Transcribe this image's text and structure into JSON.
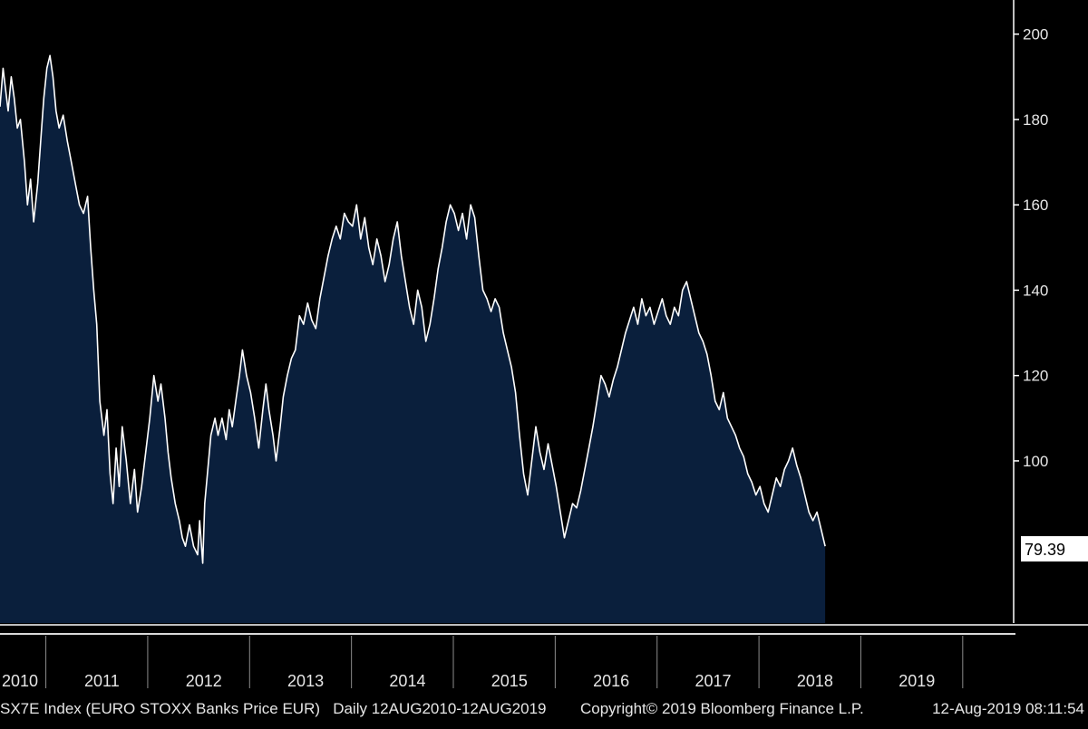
{
  "chart_data": {
    "type": "area",
    "footer": {
      "ticker": "SX7E Index (EURO STOXX Banks Price EUR)",
      "period": "Daily 12AUG2010-12AUG2019",
      "copyright": "Copyright© 2019 Bloomberg Finance L.P.",
      "timestamp": "12-Aug-2019 08:11:54"
    },
    "last_value": 79.39,
    "last_value_label": "79.39",
    "ylim": [
      62,
      208
    ],
    "xlim": [
      2010.0,
      2019.95
    ],
    "y_ticks": [
      {
        "value": 100,
        "label": "100"
      },
      {
        "value": 120,
        "label": "120"
      },
      {
        "value": 140,
        "label": "140"
      },
      {
        "value": 160,
        "label": "160"
      },
      {
        "value": 180,
        "label": "180"
      },
      {
        "value": 200,
        "label": "200"
      }
    ],
    "x_ticks": [
      {
        "value": 2010.1,
        "label": "2010"
      },
      {
        "value": 2011.0,
        "label": "2011"
      },
      {
        "value": 2012.0,
        "label": "2012"
      },
      {
        "value": 2013.0,
        "label": "2013"
      },
      {
        "value": 2014.0,
        "label": "2014"
      },
      {
        "value": 2015.0,
        "label": "2015"
      },
      {
        "value": 2016.0,
        "label": "2016"
      },
      {
        "value": 2017.0,
        "label": "2017"
      },
      {
        "value": 2018.0,
        "label": "2018"
      },
      {
        "value": 2019.0,
        "label": "2019"
      }
    ],
    "year_dividers": [
      2010.45,
      2011.45,
      2012.45,
      2013.45,
      2014.45,
      2015.45,
      2016.45,
      2017.45,
      2018.45,
      2019.45
    ],
    "colors": {
      "background": "#000000",
      "fill": "#0a1f3c",
      "line": "#ffffff",
      "axis": "#ffffff"
    },
    "series": [
      {
        "values": [
          [
            2010.0,
            183
          ],
          [
            2010.03,
            192
          ],
          [
            2010.05,
            188
          ],
          [
            2010.08,
            182
          ],
          [
            2010.11,
            190
          ],
          [
            2010.14,
            185
          ],
          [
            2010.17,
            178
          ],
          [
            2010.2,
            180
          ],
          [
            2010.24,
            170
          ],
          [
            2010.27,
            160
          ],
          [
            2010.3,
            166
          ],
          [
            2010.33,
            156
          ],
          [
            2010.37,
            165
          ],
          [
            2010.4,
            175
          ],
          [
            2010.43,
            185
          ],
          [
            2010.46,
            192
          ],
          [
            2010.49,
            195
          ],
          [
            2010.52,
            190
          ],
          [
            2010.55,
            182
          ],
          [
            2010.58,
            178
          ],
          [
            2010.62,
            181
          ],
          [
            2010.66,
            175
          ],
          [
            2010.7,
            170
          ],
          [
            2010.74,
            165
          ],
          [
            2010.78,
            160
          ],
          [
            2010.82,
            158
          ],
          [
            2010.86,
            162
          ],
          [
            2010.89,
            150
          ],
          [
            2010.92,
            140
          ],
          [
            2010.95,
            132
          ],
          [
            2010.98,
            114
          ],
          [
            2011.02,
            106
          ],
          [
            2011.05,
            112
          ],
          [
            2011.08,
            97
          ],
          [
            2011.11,
            90
          ],
          [
            2011.14,
            103
          ],
          [
            2011.17,
            94
          ],
          [
            2011.2,
            108
          ],
          [
            2011.24,
            100
          ],
          [
            2011.28,
            90
          ],
          [
            2011.32,
            98
          ],
          [
            2011.35,
            88
          ],
          [
            2011.39,
            94
          ],
          [
            2011.43,
            102
          ],
          [
            2011.47,
            110
          ],
          [
            2011.51,
            120
          ],
          [
            2011.55,
            114
          ],
          [
            2011.58,
            118
          ],
          [
            2011.62,
            110
          ],
          [
            2011.65,
            102
          ],
          [
            2011.68,
            96
          ],
          [
            2011.72,
            90
          ],
          [
            2011.76,
            86
          ],
          [
            2011.79,
            82
          ],
          [
            2011.82,
            80
          ],
          [
            2011.86,
            85
          ],
          [
            2011.9,
            80
          ],
          [
            2011.94,
            78
          ],
          [
            2011.96,
            86
          ],
          [
            2011.99,
            76
          ],
          [
            2012.01,
            90
          ],
          [
            2012.04,
            98
          ],
          [
            2012.07,
            106
          ],
          [
            2012.11,
            110
          ],
          [
            2012.14,
            106
          ],
          [
            2012.18,
            110
          ],
          [
            2012.22,
            105
          ],
          [
            2012.25,
            112
          ],
          [
            2012.28,
            108
          ],
          [
            2012.32,
            115
          ],
          [
            2012.35,
            120
          ],
          [
            2012.38,
            126
          ],
          [
            2012.42,
            120
          ],
          [
            2012.46,
            116
          ],
          [
            2012.5,
            110
          ],
          [
            2012.54,
            103
          ],
          [
            2012.58,
            112
          ],
          [
            2012.61,
            118
          ],
          [
            2012.64,
            112
          ],
          [
            2012.68,
            106
          ],
          [
            2012.71,
            100
          ],
          [
            2012.75,
            108
          ],
          [
            2012.78,
            115
          ],
          [
            2012.82,
            120
          ],
          [
            2012.86,
            124
          ],
          [
            2012.9,
            126
          ],
          [
            2012.94,
            134
          ],
          [
            2012.98,
            132
          ],
          [
            2013.02,
            137
          ],
          [
            2013.06,
            133
          ],
          [
            2013.1,
            131
          ],
          [
            2013.14,
            138
          ],
          [
            2013.18,
            143
          ],
          [
            2013.22,
            148
          ],
          [
            2013.26,
            152
          ],
          [
            2013.3,
            155
          ],
          [
            2013.34,
            152
          ],
          [
            2013.38,
            158
          ],
          [
            2013.42,
            156
          ],
          [
            2013.46,
            155
          ],
          [
            2013.5,
            160
          ],
          [
            2013.54,
            152
          ],
          [
            2013.58,
            157
          ],
          [
            2013.62,
            150
          ],
          [
            2013.66,
            146
          ],
          [
            2013.7,
            152
          ],
          [
            2013.74,
            148
          ],
          [
            2013.78,
            142
          ],
          [
            2013.82,
            146
          ],
          [
            2013.86,
            152
          ],
          [
            2013.9,
            156
          ],
          [
            2013.94,
            148
          ],
          [
            2013.98,
            142
          ],
          [
            2014.02,
            136
          ],
          [
            2014.06,
            132
          ],
          [
            2014.1,
            140
          ],
          [
            2014.14,
            136
          ],
          [
            2014.18,
            128
          ],
          [
            2014.22,
            132
          ],
          [
            2014.26,
            138
          ],
          [
            2014.3,
            145
          ],
          [
            2014.34,
            150
          ],
          [
            2014.38,
            156
          ],
          [
            2014.42,
            160
          ],
          [
            2014.46,
            158
          ],
          [
            2014.5,
            154
          ],
          [
            2014.54,
            158
          ],
          [
            2014.58,
            152
          ],
          [
            2014.62,
            160
          ],
          [
            2014.66,
            157
          ],
          [
            2014.7,
            148
          ],
          [
            2014.74,
            140
          ],
          [
            2014.78,
            138
          ],
          [
            2014.82,
            135
          ],
          [
            2014.86,
            138
          ],
          [
            2014.9,
            136
          ],
          [
            2014.94,
            130
          ],
          [
            2014.98,
            126
          ],
          [
            2015.02,
            122
          ],
          [
            2015.06,
            116
          ],
          [
            2015.1,
            106
          ],
          [
            2015.14,
            97
          ],
          [
            2015.18,
            92
          ],
          [
            2015.22,
            100
          ],
          [
            2015.26,
            108
          ],
          [
            2015.3,
            102
          ],
          [
            2015.34,
            98
          ],
          [
            2015.38,
            104
          ],
          [
            2015.42,
            99
          ],
          [
            2015.46,
            94
          ],
          [
            2015.5,
            88
          ],
          [
            2015.54,
            82
          ],
          [
            2015.58,
            86
          ],
          [
            2015.62,
            90
          ],
          [
            2015.66,
            89
          ],
          [
            2015.7,
            93
          ],
          [
            2015.74,
            98
          ],
          [
            2015.78,
            103
          ],
          [
            2015.82,
            108
          ],
          [
            2015.86,
            114
          ],
          [
            2015.9,
            120
          ],
          [
            2015.94,
            118
          ],
          [
            2015.98,
            115
          ],
          [
            2016.02,
            119
          ],
          [
            2016.06,
            122
          ],
          [
            2016.1,
            126
          ],
          [
            2016.14,
            130
          ],
          [
            2016.18,
            133
          ],
          [
            2016.22,
            136
          ],
          [
            2016.26,
            132
          ],
          [
            2016.3,
            138
          ],
          [
            2016.34,
            134
          ],
          [
            2016.38,
            136
          ],
          [
            2016.42,
            132
          ],
          [
            2016.46,
            135
          ],
          [
            2016.5,
            138
          ],
          [
            2016.54,
            134
          ],
          [
            2016.58,
            132
          ],
          [
            2016.62,
            136
          ],
          [
            2016.66,
            134
          ],
          [
            2016.7,
            140
          ],
          [
            2016.74,
            142
          ],
          [
            2016.78,
            138
          ],
          [
            2016.82,
            134
          ],
          [
            2016.86,
            130
          ],
          [
            2016.9,
            128
          ],
          [
            2016.94,
            125
          ],
          [
            2016.98,
            120
          ],
          [
            2017.02,
            114
          ],
          [
            2017.06,
            112
          ],
          [
            2017.1,
            116
          ],
          [
            2017.14,
            110
          ],
          [
            2017.18,
            108
          ],
          [
            2017.22,
            106
          ],
          [
            2017.26,
            103
          ],
          [
            2017.3,
            101
          ],
          [
            2017.34,
            97
          ],
          [
            2017.38,
            95
          ],
          [
            2017.42,
            92
          ],
          [
            2017.46,
            94
          ],
          [
            2017.5,
            90
          ],
          [
            2017.54,
            88
          ],
          [
            2017.58,
            92
          ],
          [
            2017.62,
            96
          ],
          [
            2017.66,
            94
          ],
          [
            2017.7,
            98
          ],
          [
            2017.74,
            100
          ],
          [
            2017.78,
            103
          ],
          [
            2017.82,
            99
          ],
          [
            2017.86,
            96
          ],
          [
            2017.9,
            92
          ],
          [
            2017.94,
            88
          ],
          [
            2017.98,
            86
          ],
          [
            2018.02,
            88
          ],
          [
            2018.06,
            84
          ],
          [
            2018.1,
            80
          ]
        ]
      }
    ]
  }
}
